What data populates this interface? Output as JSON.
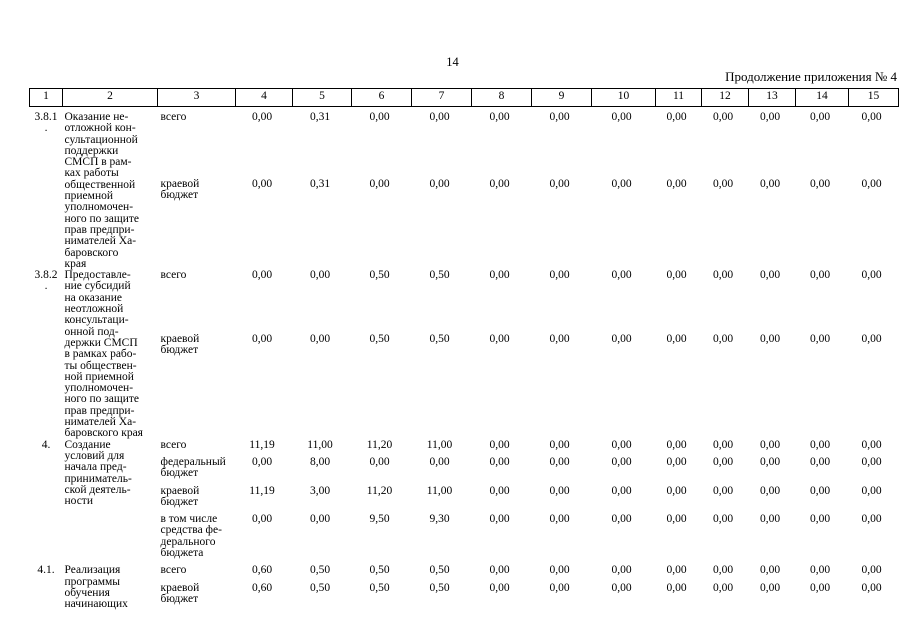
{
  "page": {
    "number": "14",
    "continuation_label": "Продолжение приложения № 4"
  },
  "table": {
    "column_headers": [
      "1",
      "2",
      "3",
      "4",
      "5",
      "6",
      "7",
      "8",
      "9",
      "10",
      "11",
      "12",
      "13",
      "14",
      "15"
    ],
    "items": [
      {
        "num": "3.8.1\n.",
        "name": "Оказание не-\nотложной кон-\nсультационной\nподдержки\nСМСП в рам-\nках работы\nобщественной\nприемной\nуполномочен-\nного по защите\nправ предпри-\nнимателей Ха-\nбаровского\nкрая",
        "sub_rows": [
          {
            "source": "всего",
            "values": [
              "0,00",
              "0,31",
              "0,00",
              "0,00",
              "0,00",
              "0,00",
              "0,00",
              "0,00",
              "0,00",
              "0,00",
              "0,00",
              "0,00"
            ]
          },
          {
            "source": "краевой\nбюджет",
            "values": [
              "0,00",
              "0,31",
              "0,00",
              "0,00",
              "0,00",
              "0,00",
              "0,00",
              "0,00",
              "0,00",
              "0,00",
              "0,00",
              "0,00"
            ]
          }
        ]
      },
      {
        "num": "3.8.2\n.",
        "name": "Предоставле-\nние субсидий\nна оказание\nнеотложной\nконсультаци-\nонной под-\nдержки СМСП\nв рамках рабо-\nты обществен-\nной приемной\nуполномочен-\nного по защите\nправ предпри-\nнимателей Ха-\nбаровского края",
        "sub_rows": [
          {
            "source": "всего",
            "values": [
              "0,00",
              "0,00",
              "0,50",
              "0,50",
              "0,00",
              "0,00",
              "0,00",
              "0,00",
              "0,00",
              "0,00",
              "0,00",
              "0,00"
            ]
          },
          {
            "source": "краевой\nбюджет",
            "values": [
              "0,00",
              "0,00",
              "0,50",
              "0,50",
              "0,00",
              "0,00",
              "0,00",
              "0,00",
              "0,00",
              "0,00",
              "0,00",
              "0,00"
            ]
          }
        ]
      },
      {
        "num": "4.",
        "name": "Создание\nусловий для\nначала пред-\nприниматель-\nской деятель-\nности",
        "sub_rows": [
          {
            "source": "всего",
            "values": [
              "11,19",
              "11,00",
              "11,20",
              "11,00",
              "0,00",
              "0,00",
              "0,00",
              "0,00",
              "0,00",
              "0,00",
              "0,00",
              "0,00"
            ]
          },
          {
            "source": "федеральный\nбюджет",
            "values": [
              "0,00",
              "8,00",
              "0,00",
              "0,00",
              "0,00",
              "0,00",
              "0,00",
              "0,00",
              "0,00",
              "0,00",
              "0,00",
              "0,00"
            ]
          },
          {
            "source": "краевой\nбюджет",
            "values": [
              "11,19",
              "3,00",
              "11,20",
              "11,00",
              "0,00",
              "0,00",
              "0,00",
              "0,00",
              "0,00",
              "0,00",
              "0,00",
              "0,00"
            ]
          },
          {
            "source": "в том числе\nсредства фе-\nдерального\nбюджета",
            "values": [
              "0,00",
              "0,00",
              "9,50",
              "9,30",
              "0,00",
              "0,00",
              "0,00",
              "0,00",
              "0,00",
              "0,00",
              "0,00",
              "0,00"
            ]
          }
        ]
      },
      {
        "num": "4.1.",
        "name": "Реализация\nпрограммы\nобучения\nначинающих",
        "sub_rows": [
          {
            "source": "всего",
            "values": [
              "0,60",
              "0,50",
              "0,50",
              "0,50",
              "0,00",
              "0,00",
              "0,00",
              "0,00",
              "0,00",
              "0,00",
              "0,00",
              "0,00"
            ]
          },
          {
            "source": "краевой\nбюджет",
            "values": [
              "0,60",
              "0,50",
              "0,50",
              "0,50",
              "0,00",
              "0,00",
              "0,00",
              "0,00",
              "0,00",
              "0,00",
              "0,00",
              "0,00"
            ]
          }
        ]
      }
    ]
  }
}
